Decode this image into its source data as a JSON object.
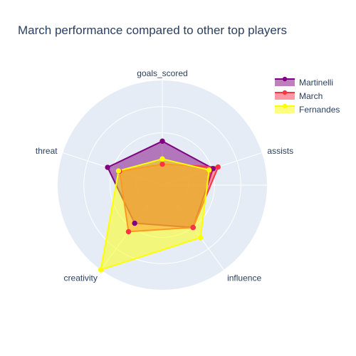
{
  "chart_data": {
    "type": "radar",
    "title": "March performance compared to other top players",
    "axes": [
      "goals_scored",
      "assists",
      "influence",
      "creativity",
      "threat"
    ],
    "radial_range": [
      0,
      100
    ],
    "series": [
      {
        "name": "Martinelli",
        "color": "#800080",
        "values": [
          42,
          51,
          50,
          45,
          55
        ]
      },
      {
        "name": "March",
        "color": "#ff3344",
        "values": [
          20,
          56,
          50,
          55,
          43
        ]
      },
      {
        "name": "Fernandes",
        "color": "#ffff00",
        "values": [
          25,
          47,
          62,
          100,
          44
        ]
      }
    ],
    "legend_position": "top-right",
    "background_color": "#e5ecf6",
    "grid": true
  }
}
